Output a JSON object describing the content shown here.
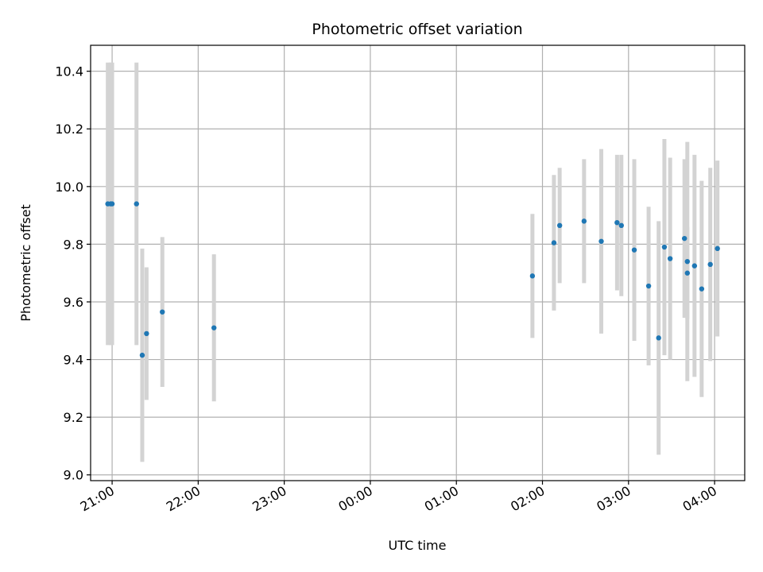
{
  "chart_data": {
    "type": "scatter",
    "title": "Photometric offset variation",
    "xlabel": "UTC time",
    "ylabel": "Photometric offset",
    "x_axis": {
      "kind": "time",
      "range": [
        "20:45",
        "04:21"
      ],
      "ticks": [
        "21:00",
        "22:00",
        "23:00",
        "00:00",
        "01:00",
        "02:00",
        "03:00",
        "04:00"
      ]
    },
    "y_axis": {
      "range": [
        8.98,
        10.49
      ],
      "ticks": [
        "9.0",
        "9.2",
        "9.4",
        "9.6",
        "9.8",
        "10.0",
        "10.2",
        "10.4"
      ]
    },
    "grid": true,
    "legend": "none",
    "colors": {
      "point": "#1f77b4",
      "errorbar": "#d3d3d3",
      "grid": "#b0b0b0"
    },
    "points": [
      {
        "t": "20:57",
        "y": 9.94,
        "err": 0.49
      },
      {
        "t": "20:59",
        "y": 9.94,
        "err": 0.49
      },
      {
        "t": "21:00",
        "y": 9.94,
        "err": 0.49
      },
      {
        "t": "21:17",
        "y": 9.94,
        "err": 0.49
      },
      {
        "t": "21:21",
        "y": 9.415,
        "err": 0.37
      },
      {
        "t": "21:24",
        "y": 9.49,
        "err": 0.23
      },
      {
        "t": "21:35",
        "y": 9.565,
        "err": 0.26
      },
      {
        "t": "22:11",
        "y": 9.51,
        "err": 0.255
      },
      {
        "t": "01:53",
        "y": 9.69,
        "err": 0.215
      },
      {
        "t": "02:08",
        "y": 9.805,
        "err": 0.235
      },
      {
        "t": "02:12",
        "y": 9.865,
        "err": 0.2
      },
      {
        "t": "02:29",
        "y": 9.88,
        "err": 0.215
      },
      {
        "t": "02:41",
        "y": 9.81,
        "err": 0.32
      },
      {
        "t": "02:52",
        "y": 9.875,
        "err": 0.235
      },
      {
        "t": "02:55",
        "y": 9.865,
        "err": 0.245
      },
      {
        "t": "03:04",
        "y": 9.78,
        "err": 0.315
      },
      {
        "t": "03:14",
        "y": 9.655,
        "err": 0.275
      },
      {
        "t": "03:21",
        "y": 9.475,
        "err": 0.405
      },
      {
        "t": "03:25",
        "y": 9.79,
        "err": 0.375
      },
      {
        "t": "03:29",
        "y": 9.75,
        "err": 0.35
      },
      {
        "t": "03:39",
        "y": 9.82,
        "err": 0.275
      },
      {
        "t": "03:41",
        "y": 9.74,
        "err": 0.415
      },
      {
        "t": "03:41",
        "y": 9.7,
        "err": 0.16
      },
      {
        "t": "03:46",
        "y": 9.725,
        "err": 0.385
      },
      {
        "t": "03:51",
        "y": 9.645,
        "err": 0.375
      },
      {
        "t": "03:57",
        "y": 9.73,
        "err": 0.335
      },
      {
        "t": "04:02",
        "y": 9.785,
        "err": 0.305
      }
    ]
  }
}
